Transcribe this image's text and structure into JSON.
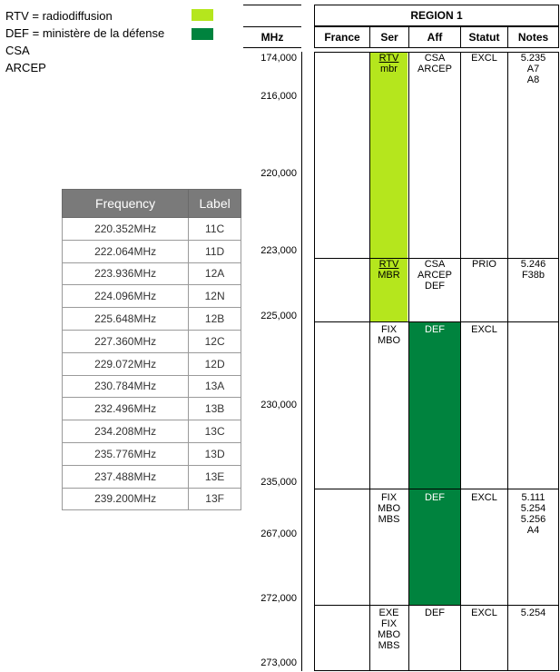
{
  "legend": {
    "rtv": "RTV =  radiodiffusion",
    "def": "DEF = ministère de la défense",
    "csa": "CSA",
    "arcep": "ARCEP",
    "colors": {
      "rtv": "#b5e61d",
      "def": "#00833e"
    }
  },
  "freq_table": {
    "headers": [
      "Frequency",
      "Label"
    ],
    "rows": [
      [
        "220.352MHz",
        "11C"
      ],
      [
        "222.064MHz",
        "11D"
      ],
      [
        "223.936MHz",
        "12A"
      ],
      [
        "224.096MHz",
        "12N"
      ],
      [
        "225.648MHz",
        "12B"
      ],
      [
        "227.360MHz",
        "12C"
      ],
      [
        "229.072MHz",
        "12D"
      ],
      [
        "230.784MHz",
        "13A"
      ],
      [
        "232.496MHz",
        "13B"
      ],
      [
        "234.208MHz",
        "13C"
      ],
      [
        "235.776MHz",
        "13D"
      ],
      [
        "237.488MHz",
        "13E"
      ],
      [
        "239.200MHz",
        "13F"
      ]
    ]
  },
  "mhz": {
    "header": "MHz",
    "labels": [
      "174,000",
      "216,000",
      "220,000",
      "223,000",
      "225,000",
      "230,000",
      "235,000",
      "267,000",
      "272,000",
      "273,000"
    ]
  },
  "region": {
    "title": "REGION 1",
    "headers": [
      "France",
      "Ser",
      "Aff",
      "Statut",
      "Notes"
    ],
    "rows": [
      {
        "ser": [
          "RTV",
          "mbr"
        ],
        "aff": [
          "CSA",
          "ARCEP"
        ],
        "statut": "EXCL",
        "notes": [
          "5.235",
          "A7",
          "A8"
        ]
      },
      {
        "ser": [
          "RTV",
          "MBR"
        ],
        "aff": [
          "CSA",
          "ARCEP",
          "DEF"
        ],
        "statut": "PRIO",
        "notes": [
          "5.246",
          "F38b"
        ]
      },
      {
        "ser": [
          "FIX",
          "MBO"
        ],
        "aff": [
          "DEF"
        ],
        "statut": "EXCL",
        "notes": []
      },
      {
        "ser": [
          "FIX",
          "MBO",
          "MBS"
        ],
        "aff": [
          "DEF"
        ],
        "statut": "EXCL",
        "notes": [
          "5.111",
          "5.254",
          "5.256",
          "A4"
        ]
      },
      {
        "ser": [
          "EXE",
          "FIX",
          "MBO",
          "MBS"
        ],
        "aff": [
          "DEF"
        ],
        "statut": "EXCL",
        "notes": [
          "5.254"
        ]
      }
    ]
  }
}
